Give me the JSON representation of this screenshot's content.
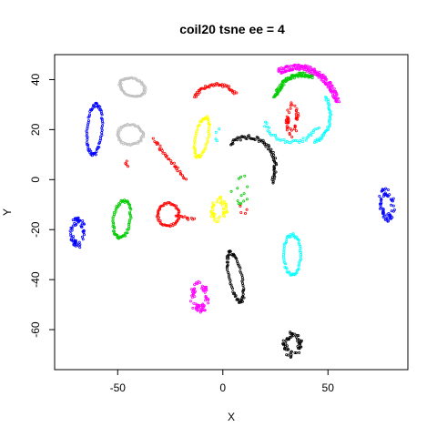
{
  "chart_data": {
    "type": "scatter",
    "title": "coil20 tsne ee = 4",
    "xlabel": "X",
    "ylabel": "Y",
    "xlim": [
      -80,
      88
    ],
    "ylim": [
      -76,
      50
    ],
    "xticks": [
      -50,
      0,
      50
    ],
    "yticks": [
      -60,
      -40,
      -20,
      0,
      20,
      40
    ],
    "grid": false,
    "legend": "none",
    "clusters": [
      {
        "color": "#0000ff",
        "shape": "ring",
        "cx": -61,
        "cy": 20,
        "rx": 3.5,
        "ry": 10,
        "rot": -5,
        "n": 70
      },
      {
        "color": "#0000ff",
        "shape": "blob",
        "cx": -69,
        "cy": -21,
        "rx": 3.5,
        "ry": 6,
        "rot": 0,
        "n": 60
      },
      {
        "color": "#0000ff",
        "shape": "blob",
        "cx": 78,
        "cy": -10,
        "rx": 3.5,
        "ry": 6.5,
        "rot": 10,
        "n": 60
      },
      {
        "color": "#00cc00",
        "shape": "ring",
        "cx": -48,
        "cy": -16,
        "rx": 4,
        "ry": 7.5,
        "rot": -10,
        "n": 70
      },
      {
        "color": "#00cc00",
        "shape": "arc",
        "cx": 38,
        "cy": 28,
        "rx": 14,
        "ry": 14,
        "a0": 70,
        "a1": 160,
        "n": 90
      },
      {
        "color": "#00cc00",
        "shape": "scatter",
        "cx": 8,
        "cy": -3,
        "rx": 4,
        "ry": 7,
        "rot": 0,
        "n": 14
      },
      {
        "color": "#ff0000",
        "shape": "arc",
        "cx": -3,
        "cy": 28,
        "rx": 12,
        "ry": 10,
        "a0": 40,
        "a1": 150,
        "n": 45
      },
      {
        "color": "#ff0000",
        "shape": "line",
        "x0": -33,
        "y0": 16,
        "x1": -18,
        "y1": 0,
        "n": 35
      },
      {
        "color": "#ff0000",
        "shape": "ring",
        "cx": -26,
        "cy": -14,
        "rx": 5,
        "ry": 4.5,
        "rot": 0,
        "n": 55
      },
      {
        "color": "#ff0000",
        "shape": "line",
        "x0": -22,
        "y0": -14,
        "x1": -14,
        "y1": -16,
        "n": 12
      },
      {
        "color": "#ff0000",
        "shape": "blob",
        "cx": 33,
        "cy": 24,
        "rx": 3,
        "ry": 7,
        "rot": 0,
        "n": 45
      },
      {
        "color": "#ff0000",
        "shape": "line",
        "x0": -46,
        "y0": 8,
        "x1": -45,
        "y1": 5,
        "n": 4
      },
      {
        "color": "#ff0000",
        "shape": "scatter",
        "cx": 10,
        "cy": -12,
        "rx": 2,
        "ry": 3,
        "rot": 0,
        "n": 4
      },
      {
        "color": "#ffff00",
        "shape": "ring",
        "cx": -10,
        "cy": 17,
        "rx": 3,
        "ry": 8,
        "rot": -15,
        "n": 60
      },
      {
        "color": "#ffff00",
        "shape": "blob",
        "cx": -2,
        "cy": -12,
        "rx": 4,
        "ry": 5,
        "rot": 0,
        "n": 50
      },
      {
        "color": "#00ffff",
        "shape": "ring",
        "cx": 33,
        "cy": -30,
        "rx": 4,
        "ry": 8,
        "rot": 0,
        "n": 60
      },
      {
        "color": "#00ffff",
        "shape": "arc",
        "cx": 33,
        "cy": 27,
        "rx": 14,
        "ry": 12,
        "a0": 200,
        "a1": 330,
        "n": 40
      },
      {
        "color": "#00ffff",
        "shape": "arc",
        "cx": 42,
        "cy": 26,
        "rx": 9,
        "ry": 11,
        "a0": -80,
        "a1": 40,
        "n": 40
      },
      {
        "color": "#00ffff",
        "shape": "scatter",
        "cx": -3,
        "cy": 18,
        "rx": 2,
        "ry": 3,
        "rot": 0,
        "n": 4
      },
      {
        "color": "#ff00ff",
        "shape": "arc",
        "cx": 35,
        "cy": 26,
        "rx": 20,
        "ry": 19,
        "a0": 15,
        "a1": 115,
        "n": 160
      },
      {
        "color": "#ff00ff",
        "shape": "blob",
        "cx": -11,
        "cy": -47,
        "rx": 4.5,
        "ry": 6,
        "rot": 0,
        "n": 70
      },
      {
        "color": "#bebebe",
        "shape": "ring",
        "cx": -43,
        "cy": 37,
        "rx": 6,
        "ry": 3.5,
        "rot": -15,
        "n": 60
      },
      {
        "color": "#bebebe",
        "shape": "ring",
        "cx": -44,
        "cy": 18,
        "rx": 6,
        "ry": 4,
        "rot": 0,
        "n": 60
      },
      {
        "color": "#000000",
        "shape": "arc",
        "cx": 12,
        "cy": 5,
        "rx": 13,
        "ry": 12,
        "a0": -30,
        "a1": 130,
        "n": 70
      },
      {
        "color": "#000000",
        "shape": "ring",
        "cx": 6,
        "cy": -39,
        "rx": 3,
        "ry": 10,
        "rot": 15,
        "n": 70
      },
      {
        "color": "#000000",
        "shape": "blob",
        "cx": 33,
        "cy": -66,
        "rx": 4.5,
        "ry": 5,
        "rot": 0,
        "n": 60
      }
    ]
  }
}
